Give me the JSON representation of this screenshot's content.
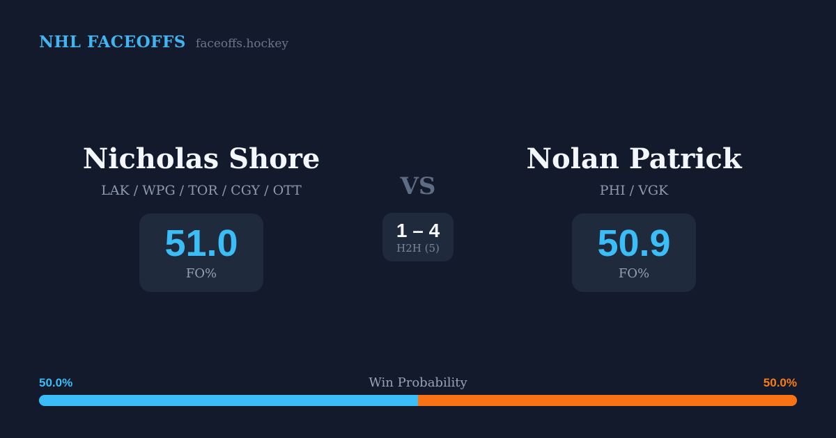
{
  "header": {
    "title": "NHL FACEOFFS",
    "site": "faceoffs.hockey"
  },
  "player_left": {
    "name": "Nicholas Shore",
    "teams": "LAK / WPG / TOR / CGY / OTT",
    "fo_value": "51.0",
    "fo_label": "FO%"
  },
  "center": {
    "vs_label": "VS",
    "h2h_score": "1 – 4",
    "h2h_label": "H2H (5)"
  },
  "player_right": {
    "name": "Nolan Patrick",
    "teams": "PHI / VGK",
    "fo_value": "50.9",
    "fo_label": "FO%"
  },
  "win_probability": {
    "title": "Win Probability",
    "left_label": "50.0%",
    "right_label": "50.0%",
    "left_pct": 50.0,
    "right_pct": 50.0,
    "left_color": "#3bbdf8",
    "right_color": "#f97316"
  },
  "colors": {
    "background": "#121a2b",
    "panel": "#1f2a3c",
    "accent_blue": "#3bbdf8",
    "accent_orange": "#f97316",
    "text_primary": "#f3f6fa",
    "text_muted": "#8e9ab0"
  }
}
